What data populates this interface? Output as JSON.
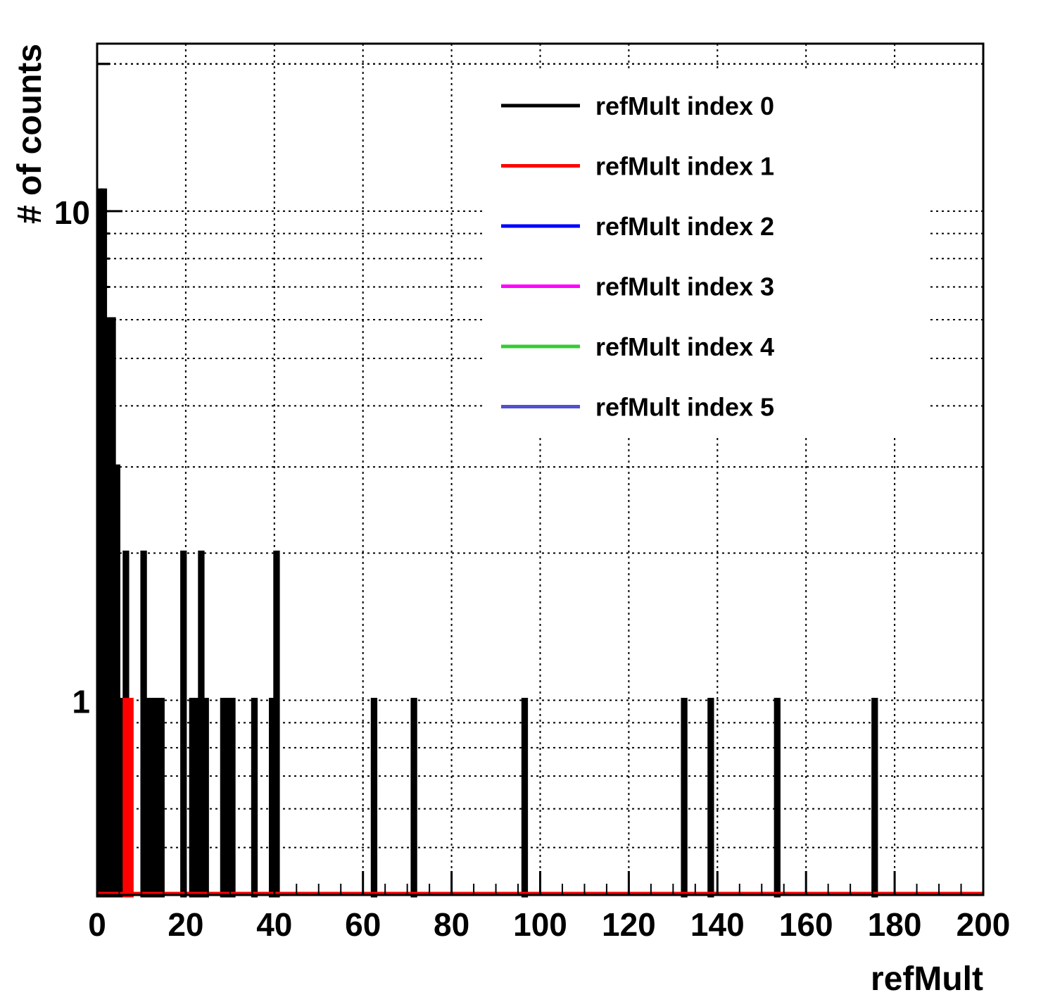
{
  "chart_data": {
    "type": "histogram",
    "title": "",
    "xlabel": "refMult",
    "ylabel": "# of counts",
    "xlim": [
      0,
      200
    ],
    "ylim": [
      0.4,
      22
    ],
    "y_scale": "log",
    "grid": true,
    "bin_width": 1,
    "x_ticks": [
      "0",
      "20",
      "40",
      "60",
      "80",
      "100",
      "120",
      "140",
      "160",
      "180",
      "200"
    ],
    "y_ticks": [
      {
        "value": 1,
        "label": "1"
      },
      {
        "value": 10,
        "label": "10"
      }
    ],
    "legend_position": "top-right",
    "series": [
      {
        "name": "refMult index 0",
        "color": "#000000",
        "bins": [
          {
            "x": 0,
            "y": 11
          },
          {
            "x": 1,
            "y": 11
          },
          {
            "x": 2,
            "y": 6
          },
          {
            "x": 3,
            "y": 6
          },
          {
            "x": 4,
            "y": 3
          },
          {
            "x": 5,
            "y": 1
          },
          {
            "x": 6,
            "y": 2
          },
          {
            "x": 10,
            "y": 2
          },
          {
            "x": 11,
            "y": 1
          },
          {
            "x": 12,
            "y": 1
          },
          {
            "x": 13,
            "y": 1
          },
          {
            "x": 14,
            "y": 1
          },
          {
            "x": 19,
            "y": 2
          },
          {
            "x": 21,
            "y": 1
          },
          {
            "x": 22,
            "y": 1
          },
          {
            "x": 23,
            "y": 2
          },
          {
            "x": 24,
            "y": 1
          },
          {
            "x": 28,
            "y": 1
          },
          {
            "x": 29,
            "y": 1
          },
          {
            "x": 30,
            "y": 1
          },
          {
            "x": 35,
            "y": 1
          },
          {
            "x": 39,
            "y": 1
          },
          {
            "x": 40,
            "y": 2
          },
          {
            "x": 62,
            "y": 1
          },
          {
            "x": 71,
            "y": 1
          },
          {
            "x": 96,
            "y": 1
          },
          {
            "x": 132,
            "y": 1
          },
          {
            "x": 138,
            "y": 1
          },
          {
            "x": 153,
            "y": 1
          },
          {
            "x": 175,
            "y": 1
          }
        ]
      },
      {
        "name": "refMult index 1",
        "color": "#ff0000",
        "bins": [
          {
            "x": 6,
            "y": 1
          },
          {
            "x": 7,
            "y": 1
          }
        ]
      },
      {
        "name": "refMult index 2",
        "color": "#0000ff",
        "bins": []
      },
      {
        "name": "refMult index 3",
        "color": "#ff00ff",
        "bins": []
      },
      {
        "name": "refMult index 4",
        "color": "#33cc33",
        "bins": []
      },
      {
        "name": "refMult index 5",
        "color": "#5050d0",
        "bins": []
      }
    ]
  }
}
